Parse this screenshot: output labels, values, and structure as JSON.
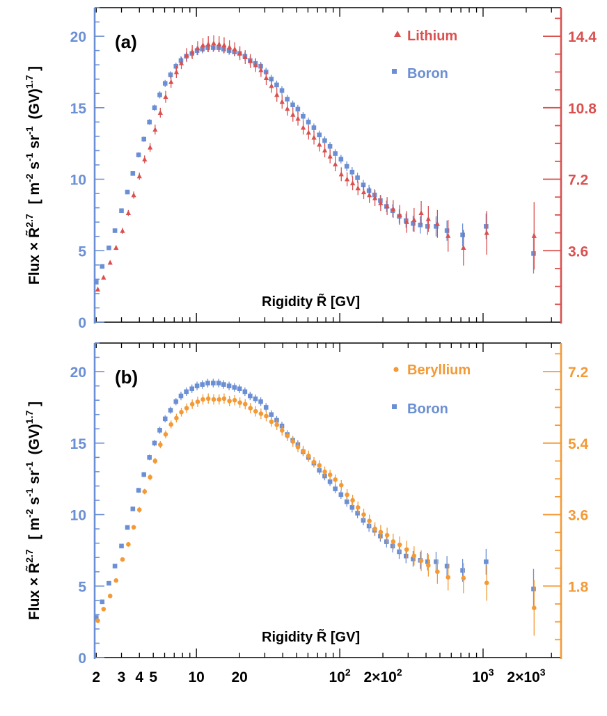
{
  "colors": {
    "boron": "#6b8fd4",
    "lithium": "#d9504f",
    "beryllium": "#f39a36",
    "frame": "#000000",
    "left_axis": "#6b8fd4"
  },
  "chart_data": [
    {
      "type": "scatter",
      "panel_label": "(a)",
      "xlabel": "Rigidity R̃ [GV]",
      "ylabel": "Flux × R̃^2.7 [ m^-2 s^-1 sr^-1 (GV)^1.7 ]",
      "ylabel_parts": {
        "flux": "Flux",
        "times": "×",
        "r": "R̃",
        "r_exp": "2.7",
        "unit_a": "[ m",
        "unit_a_exp": "-2",
        "unit_b": "s",
        "unit_b_exp": "-1",
        "unit_c": "sr",
        "unit_c_exp": "-1",
        "unit_d": "(GV)",
        "unit_d_exp": "1.7",
        "unit_e": "]"
      },
      "xscale": "log",
      "xlim": [
        1.95,
        3500
      ],
      "ylim": [
        0,
        22
      ],
      "left_ticks": [
        "0",
        "5",
        "10",
        "15",
        "20"
      ],
      "left_tick_values": [
        0,
        5,
        10,
        15,
        20
      ],
      "right_axis_color": "#d9504f",
      "right_scale": 0.72,
      "right_ticks": [
        "3.6",
        "7.2",
        "10.8",
        "14.4"
      ],
      "right_tick_values": [
        3.6,
        7.2,
        10.8,
        14.4
      ],
      "legend": [
        "Lithium",
        "Boron"
      ],
      "series": [
        {
          "name": "Boron",
          "axis": "left",
          "marker": "square",
          "color": "#6b8fd4",
          "x": [
            2.0,
            2.2,
            2.45,
            2.7,
            3.0,
            3.3,
            3.6,
            3.95,
            4.3,
            4.7,
            5.1,
            5.55,
            6.05,
            6.6,
            7.2,
            7.8,
            8.5,
            9.3,
            10.1,
            11.0,
            12.0,
            13.1,
            14.3,
            15.5,
            16.9,
            18.4,
            20.0,
            21.8,
            23.7,
            25.8,
            28.1,
            30.6,
            33.3,
            36.3,
            39.5,
            43.0,
            47.0,
            51.0,
            55.5,
            60.5,
            66.0,
            72.0,
            78.5,
            85.5,
            93.0,
            102,
            112,
            122,
            133,
            146,
            160,
            175,
            192,
            212,
            234,
            260,
            290,
            325,
            365,
            410,
            470,
            560,
            720,
            1050,
            2250
          ],
          "y": [
            2.8,
            3.9,
            5.2,
            6.4,
            7.8,
            9.1,
            10.4,
            11.7,
            12.8,
            14.0,
            15.0,
            15.9,
            16.7,
            17.3,
            17.9,
            18.3,
            18.6,
            18.8,
            19.0,
            19.1,
            19.2,
            19.2,
            19.2,
            19.1,
            19.0,
            18.9,
            18.8,
            18.6,
            18.3,
            18.1,
            17.9,
            17.5,
            17.0,
            16.6,
            16.2,
            15.6,
            15.2,
            14.9,
            14.4,
            14.0,
            13.6,
            13.1,
            12.7,
            12.3,
            11.8,
            11.4,
            10.9,
            10.5,
            10.1,
            9.6,
            9.2,
            8.9,
            8.5,
            8.1,
            7.8,
            7.4,
            7.1,
            6.9,
            6.8,
            6.7,
            6.7,
            6.4,
            6.1,
            6.7,
            4.8
          ],
          "err": [
            0.1,
            0.1,
            0.1,
            0.12,
            0.15,
            0.15,
            0.15,
            0.18,
            0.18,
            0.2,
            0.22,
            0.25,
            0.25,
            0.25,
            0.25,
            0.3,
            0.3,
            0.3,
            0.3,
            0.3,
            0.3,
            0.3,
            0.3,
            0.3,
            0.3,
            0.3,
            0.3,
            0.3,
            0.3,
            0.3,
            0.3,
            0.3,
            0.3,
            0.3,
            0.3,
            0.3,
            0.3,
            0.3,
            0.3,
            0.3,
            0.3,
            0.3,
            0.3,
            0.3,
            0.3,
            0.3,
            0.35,
            0.35,
            0.35,
            0.35,
            0.4,
            0.4,
            0.4,
            0.4,
            0.45,
            0.5,
            0.5,
            0.55,
            0.6,
            0.6,
            0.7,
            0.7,
            0.8,
            0.9,
            1.4
          ]
        },
        {
          "name": "Lithium",
          "axis": "right",
          "marker": "triangle",
          "color": "#d9504f",
          "x": [
            2.05,
            2.25,
            2.5,
            2.75,
            3.05,
            3.35,
            3.65,
            4.0,
            4.35,
            4.75,
            5.15,
            5.6,
            6.1,
            6.65,
            7.25,
            7.85,
            8.55,
            9.35,
            10.2,
            11.1,
            12.1,
            13.2,
            14.4,
            15.6,
            17.0,
            18.5,
            20.1,
            21.9,
            23.8,
            25.9,
            28.2,
            30.7,
            33.4,
            36.4,
            39.6,
            43.1,
            47.1,
            51.1,
            55.6,
            60.6,
            66.1,
            72.1,
            78.6,
            85.6,
            93.1,
            102.5,
            112.5,
            123,
            134,
            147,
            161,
            176,
            193,
            214,
            236,
            262,
            293,
            330,
            370,
            415,
            480,
            570,
            730,
            1060,
            2270
          ],
          "y": [
            1.65,
            2.25,
            3.0,
            3.75,
            4.6,
            5.5,
            6.4,
            7.35,
            8.2,
            8.8,
            9.7,
            10.55,
            11.35,
            12.1,
            12.6,
            13.05,
            13.45,
            13.6,
            13.8,
            13.95,
            14.0,
            14.05,
            14.0,
            13.95,
            13.85,
            13.75,
            13.55,
            13.35,
            13.15,
            12.95,
            12.7,
            12.3,
            11.9,
            11.45,
            11.1,
            10.75,
            10.45,
            10.25,
            9.8,
            9.55,
            9.3,
            8.95,
            8.65,
            8.35,
            7.95,
            7.45,
            7.2,
            7.0,
            6.75,
            6.55,
            6.4,
            6.25,
            6.0,
            5.85,
            5.7,
            5.4,
            5.05,
            5.15,
            5.5,
            5.2,
            4.95,
            4.35,
            3.75,
            4.5,
            4.35
          ],
          "err": [
            0.1,
            0.1,
            0.1,
            0.12,
            0.15,
            0.15,
            0.18,
            0.18,
            0.2,
            0.22,
            0.25,
            0.25,
            0.3,
            0.3,
            0.3,
            0.3,
            0.35,
            0.35,
            0.35,
            0.35,
            0.4,
            0.4,
            0.4,
            0.4,
            0.35,
            0.35,
            0.35,
            0.35,
            0.35,
            0.35,
            0.35,
            0.35,
            0.35,
            0.35,
            0.35,
            0.35,
            0.35,
            0.35,
            0.35,
            0.35,
            0.35,
            0.35,
            0.35,
            0.35,
            0.35,
            0.35,
            0.35,
            0.35,
            0.35,
            0.35,
            0.4,
            0.4,
            0.4,
            0.45,
            0.45,
            0.5,
            0.55,
            0.6,
            0.6,
            0.65,
            0.7,
            0.8,
            0.9,
            1.1,
            1.7
          ]
        }
      ]
    },
    {
      "type": "scatter",
      "panel_label": "(b)",
      "xlabel": "Rigidity R̃ [GV]",
      "ylabel": "Flux × R̃^2.7 [ m^-2 s^-1 sr^-1 (GV)^1.7 ]",
      "ylabel_parts": {
        "flux": "Flux",
        "times": "×",
        "r": "R̃",
        "r_exp": "2.7",
        "unit_a": "[ m",
        "unit_a_exp": "-2",
        "unit_b": "s",
        "unit_b_exp": "-1",
        "unit_c": "sr",
        "unit_c_exp": "-1",
        "unit_d": "(GV)",
        "unit_d_exp": "1.7",
        "unit_e": "]"
      },
      "xscale": "log",
      "xlim": [
        1.95,
        3500
      ],
      "ylim": [
        0,
        22
      ],
      "left_ticks": [
        "0",
        "5",
        "10",
        "15",
        "20"
      ],
      "left_tick_values": [
        0,
        5,
        10,
        15,
        20
      ],
      "right_axis_color": "#f39a36",
      "right_scale": 0.36,
      "right_ticks": [
        "1.8",
        "3.6",
        "5.4",
        "7.2"
      ],
      "right_tick_values": [
        1.8,
        3.6,
        5.4,
        7.2
      ],
      "legend": [
        "Beryllium",
        "Boron"
      ],
      "x_tick_labels": [
        {
          "value": 2,
          "base": "2"
        },
        {
          "value": 3,
          "base": "3"
        },
        {
          "value": 4,
          "base": "4"
        },
        {
          "value": 5,
          "base": "5"
        },
        {
          "value": 10,
          "base": "10"
        },
        {
          "value": 20,
          "base": "20"
        },
        {
          "value": 100,
          "base": "10",
          "sup": "2"
        },
        {
          "value": 200,
          "base": "2×10",
          "sup": "2"
        },
        {
          "value": 1000,
          "base": "10",
          "sup": "3"
        },
        {
          "value": 2000,
          "base": "2×10",
          "sup": "3"
        }
      ],
      "series": [
        {
          "name": "Boron",
          "axis": "left",
          "marker": "square",
          "color": "#6b8fd4",
          "x": [
            2.0,
            2.2,
            2.45,
            2.7,
            3.0,
            3.3,
            3.6,
            3.95,
            4.3,
            4.7,
            5.1,
            5.55,
            6.05,
            6.6,
            7.2,
            7.8,
            8.5,
            9.3,
            10.1,
            11.0,
            12.0,
            13.1,
            14.3,
            15.5,
            16.9,
            18.4,
            20.0,
            21.8,
            23.7,
            25.8,
            28.1,
            30.6,
            33.3,
            36.3,
            39.5,
            43.0,
            47.0,
            51.0,
            55.5,
            60.5,
            66.0,
            72.0,
            78.5,
            85.5,
            93.0,
            102,
            112,
            122,
            133,
            146,
            160,
            175,
            192,
            212,
            234,
            260,
            290,
            325,
            365,
            410,
            470,
            560,
            720,
            1050,
            2250
          ],
          "y": [
            2.8,
            3.9,
            5.2,
            6.4,
            7.8,
            9.1,
            10.4,
            11.7,
            12.8,
            14.0,
            15.0,
            15.9,
            16.7,
            17.3,
            17.9,
            18.3,
            18.6,
            18.8,
            19.0,
            19.1,
            19.2,
            19.2,
            19.2,
            19.1,
            19.0,
            18.9,
            18.8,
            18.6,
            18.3,
            18.1,
            17.9,
            17.5,
            17.0,
            16.6,
            16.2,
            15.6,
            15.2,
            14.9,
            14.4,
            14.0,
            13.6,
            13.1,
            12.7,
            12.3,
            11.8,
            11.4,
            10.9,
            10.5,
            10.1,
            9.6,
            9.2,
            8.9,
            8.5,
            8.1,
            7.8,
            7.4,
            7.1,
            6.9,
            6.8,
            6.7,
            6.7,
            6.4,
            6.1,
            6.7,
            4.8
          ],
          "err": [
            0.1,
            0.1,
            0.1,
            0.12,
            0.15,
            0.15,
            0.15,
            0.18,
            0.18,
            0.2,
            0.22,
            0.25,
            0.25,
            0.25,
            0.25,
            0.3,
            0.3,
            0.3,
            0.3,
            0.3,
            0.3,
            0.3,
            0.3,
            0.3,
            0.3,
            0.3,
            0.3,
            0.3,
            0.3,
            0.3,
            0.3,
            0.3,
            0.3,
            0.3,
            0.3,
            0.3,
            0.3,
            0.3,
            0.3,
            0.3,
            0.3,
            0.3,
            0.3,
            0.3,
            0.3,
            0.3,
            0.35,
            0.35,
            0.35,
            0.35,
            0.4,
            0.4,
            0.4,
            0.4,
            0.45,
            0.5,
            0.5,
            0.55,
            0.6,
            0.6,
            0.7,
            0.7,
            0.8,
            0.9,
            1.4
          ]
        },
        {
          "name": "Beryllium",
          "axis": "right",
          "marker": "circle",
          "color": "#f39a36",
          "x": [
            2.05,
            2.25,
            2.5,
            2.75,
            3.05,
            3.35,
            3.65,
            4.0,
            4.35,
            4.75,
            5.15,
            5.6,
            6.1,
            6.65,
            7.25,
            7.85,
            8.55,
            9.35,
            10.2,
            11.1,
            12.1,
            13.2,
            14.4,
            15.6,
            17.0,
            18.5,
            20.1,
            21.9,
            23.8,
            25.9,
            28.2,
            30.7,
            33.4,
            36.4,
            39.6,
            43.1,
            47.1,
            51.1,
            55.6,
            60.6,
            66.1,
            72.1,
            78.6,
            85.6,
            93.1,
            102.5,
            112.5,
            123,
            134,
            147,
            161,
            176,
            193,
            214,
            236,
            262,
            293,
            330,
            370,
            415,
            480,
            570,
            730,
            1060,
            2270
          ],
          "y": [
            0.93,
            1.22,
            1.55,
            1.94,
            2.47,
            2.85,
            3.28,
            3.72,
            4.18,
            4.54,
            4.95,
            5.36,
            5.62,
            5.87,
            6.03,
            6.18,
            6.28,
            6.38,
            6.44,
            6.5,
            6.52,
            6.5,
            6.5,
            6.52,
            6.46,
            6.48,
            6.42,
            6.38,
            6.28,
            6.2,
            6.14,
            6.08,
            5.94,
            5.86,
            5.72,
            5.58,
            5.44,
            5.3,
            5.2,
            5.08,
            4.92,
            4.84,
            4.68,
            4.6,
            4.48,
            4.34,
            4.1,
            3.96,
            3.78,
            3.6,
            3.44,
            3.24,
            3.16,
            3.08,
            2.92,
            2.84,
            2.72,
            2.56,
            2.44,
            2.32,
            2.16,
            2.02,
            2.0,
            1.88,
            1.25
          ],
          "err": [
            0.04,
            0.04,
            0.04,
            0.05,
            0.05,
            0.06,
            0.06,
            0.07,
            0.07,
            0.08,
            0.08,
            0.09,
            0.1,
            0.1,
            0.11,
            0.11,
            0.12,
            0.12,
            0.13,
            0.13,
            0.13,
            0.13,
            0.13,
            0.13,
            0.13,
            0.13,
            0.13,
            0.13,
            0.13,
            0.13,
            0.13,
            0.13,
            0.13,
            0.13,
            0.13,
            0.13,
            0.13,
            0.13,
            0.13,
            0.13,
            0.13,
            0.13,
            0.13,
            0.13,
            0.13,
            0.13,
            0.14,
            0.14,
            0.15,
            0.15,
            0.16,
            0.17,
            0.18,
            0.19,
            0.2,
            0.21,
            0.22,
            0.24,
            0.26,
            0.28,
            0.3,
            0.33,
            0.38,
            0.45,
            0.7
          ]
        }
      ]
    }
  ]
}
